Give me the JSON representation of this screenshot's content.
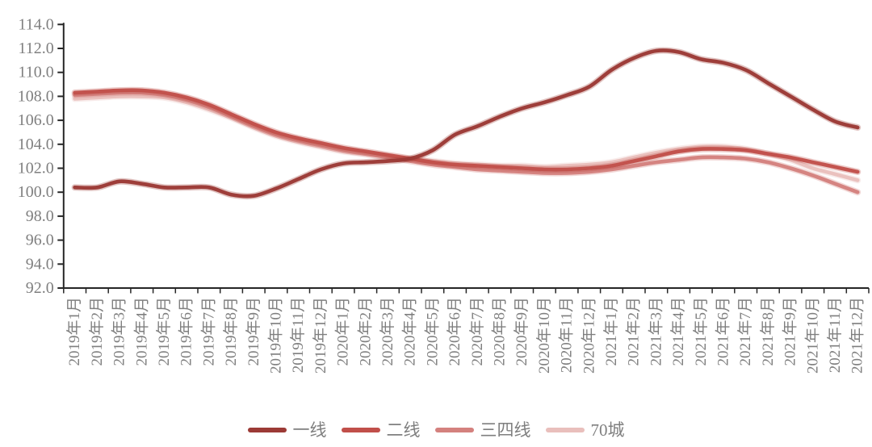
{
  "chart_data": {
    "type": "line",
    "title": "",
    "xlabel": "",
    "ylabel": "",
    "grid": false,
    "legend_position": "bottom-center",
    "ylim": [
      92.0,
      114.0
    ],
    "ytick_step": 2.0,
    "ytick_labels": [
      "92.0",
      "94.0",
      "96.0",
      "98.0",
      "100.0",
      "102.0",
      "104.0",
      "106.0",
      "108.0",
      "110.0",
      "112.0",
      "114.0"
    ],
    "axis_color": "#262626",
    "label_color": "#7f7f7f",
    "x": [
      "2019年1月",
      "2019年2月",
      "2019年3月",
      "2019年4月",
      "2019年5月",
      "2019年6月",
      "2019年7月",
      "2019年8月",
      "2019年9月",
      "2019年10月",
      "2019年11月",
      "2019年12月",
      "2020年1月",
      "2020年2月",
      "2020年3月",
      "2020年4月",
      "2020年5月",
      "2020年6月",
      "2020年7月",
      "2020年8月",
      "2020年9月",
      "2020年10月",
      "2020年11月",
      "2020年12月",
      "2021年1月",
      "2021年2月",
      "2021年3月",
      "2021年4月",
      "2021年5月",
      "2021年6月",
      "2021年7月",
      "2021年8月",
      "2021年9月",
      "2021年10月",
      "2021年11月",
      "2021年12月"
    ],
    "series": [
      {
        "name": "一线",
        "key": "first-tier",
        "color": "#9c3a36",
        "values": [
          100.4,
          100.4,
          100.9,
          100.7,
          100.4,
          100.4,
          100.4,
          99.8,
          99.7,
          100.3,
          101.1,
          101.9,
          102.4,
          102.5,
          102.6,
          102.8,
          103.5,
          104.8,
          105.5,
          106.3,
          107.0,
          107.5,
          108.1,
          108.8,
          110.2,
          111.2,
          111.8,
          111.7,
          111.1,
          110.8,
          110.2,
          109.1,
          108.0,
          106.9,
          105.9,
          105.4
        ]
      },
      {
        "name": "二线",
        "key": "second-tier",
        "color": "#c14f4a",
        "values": [
          108.3,
          108.4,
          108.5,
          108.5,
          108.3,
          107.9,
          107.3,
          106.5,
          105.7,
          105.0,
          104.5,
          104.1,
          103.7,
          103.4,
          103.1,
          102.8,
          102.5,
          102.3,
          102.2,
          102.1,
          102.0,
          101.9,
          101.9,
          102.0,
          102.2,
          102.6,
          103.0,
          103.4,
          103.6,
          103.6,
          103.5,
          103.2,
          102.9,
          102.5,
          102.1,
          101.7
        ]
      },
      {
        "name": "三四线",
        "key": "third-fourth-tier",
        "color": "#d4817e",
        "values": [
          108.1,
          108.2,
          108.3,
          108.3,
          108.1,
          107.7,
          107.1,
          106.3,
          105.5,
          104.8,
          104.3,
          103.9,
          103.5,
          103.2,
          102.9,
          102.6,
          102.3,
          102.1,
          101.9,
          101.8,
          101.7,
          101.6,
          101.6,
          101.7,
          101.9,
          102.2,
          102.5,
          102.7,
          102.9,
          102.9,
          102.8,
          102.5,
          102.0,
          101.4,
          100.7,
          100.0
        ]
      },
      {
        "name": "70城",
        "key": "70-cities",
        "color": "#e9bfbc",
        "values": [
          107.8,
          107.9,
          108.0,
          108.0,
          107.9,
          107.5,
          106.9,
          106.2,
          105.4,
          104.7,
          104.2,
          103.8,
          103.4,
          103.2,
          103.0,
          102.8,
          102.6,
          102.4,
          102.3,
          102.2,
          102.2,
          102.1,
          102.2,
          102.3,
          102.5,
          102.9,
          103.3,
          103.6,
          103.8,
          103.8,
          103.6,
          103.2,
          102.7,
          102.0,
          101.5,
          101.0
        ]
      }
    ]
  }
}
